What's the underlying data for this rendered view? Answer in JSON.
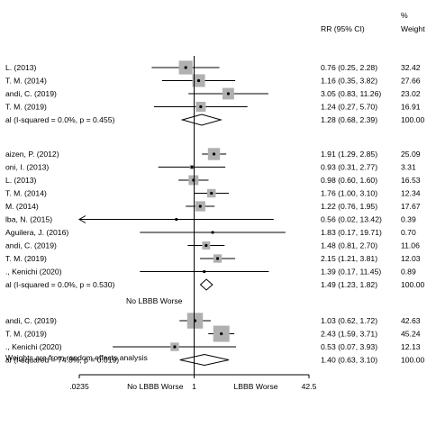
{
  "chart_data": {
    "type": "forest",
    "x_scale": "log",
    "xlim": [
      0.0235,
      42.5
    ],
    "x_ticks": [
      ".0235",
      "1",
      "42.5"
    ],
    "axis_labels": {
      "left": "No LBBB Worse",
      "right": "LBBB Worse"
    },
    "headers": {
      "estimate": "RR (95% CI)",
      "weight_top": "%",
      "weight": "Weight"
    },
    "null_line_label": "No LBBB Worse",
    "footnote": "Weights are from random effects analysis",
    "colors": {
      "line": "#000000",
      "box": "#b0b0b0",
      "summary_fill": "#ffffff"
    },
    "groups": [
      {
        "studies": [
          {
            "label": "L. (2013)",
            "rr": 0.76,
            "lo": 0.25,
            "hi": 2.28,
            "est": "0.76 (0.25, 2.28)",
            "weight": "32.42"
          },
          {
            "label": "T. M. (2014)",
            "rr": 1.16,
            "lo": 0.35,
            "hi": 3.82,
            "est": "1.16 (0.35, 3.82)",
            "weight": "27.66"
          },
          {
            "label": "andi, C. (2019)",
            "rr": 3.05,
            "lo": 0.83,
            "hi": 11.26,
            "est": "3.05 (0.83, 11.26)",
            "weight": "23.02"
          },
          {
            "label": "T. M. (2019)",
            "rr": 1.24,
            "lo": 0.27,
            "hi": 5.7,
            "est": "1.24 (0.27, 5.70)",
            "weight": "16.91"
          }
        ],
        "overall": {
          "label": "al  (I-squared = 0.0%, p = 0.455)",
          "rr": 1.28,
          "lo": 0.68,
          "hi": 2.39,
          "est": "1.28 (0.68, 2.39)",
          "weight": "100.00"
        }
      },
      {
        "studies": [
          {
            "label": "aizen, P. (2012)",
            "rr": 1.91,
            "lo": 1.29,
            "hi": 2.85,
            "est": "1.91 (1.29, 2.85)",
            "weight": "25.09"
          },
          {
            "label": "oni, I. (2013)",
            "rr": 0.93,
            "lo": 0.31,
            "hi": 2.77,
            "est": "0.93 (0.31, 2.77)",
            "weight": "3.31"
          },
          {
            "label": "L. (2013)",
            "rr": 0.98,
            "lo": 0.6,
            "hi": 1.6,
            "est": "0.98 (0.60, 1.60)",
            "weight": "16.53"
          },
          {
            "label": "T. M. (2014)",
            "rr": 1.76,
            "lo": 1.0,
            "hi": 3.1,
            "est": "1.76 (1.00, 3.10)",
            "weight": "12.34"
          },
          {
            "label": "M. (2014)",
            "rr": 1.22,
            "lo": 0.76,
            "hi": 1.95,
            "est": "1.22 (0.76, 1.95)",
            "weight": "17.67"
          },
          {
            "label": "lba, N. (2015)",
            "rr": 0.56,
            "lo": 0.02,
            "hi": 13.42,
            "est": "0.56 (0.02, 13.42)",
            "weight": "0.39",
            "arrow_left": true
          },
          {
            "label": "Aguilera, J. (2016)",
            "rr": 1.83,
            "lo": 0.17,
            "hi": 19.71,
            "est": "1.83 (0.17, 19.71)",
            "weight": "0.70"
          },
          {
            "label": "andi, C. (2019)",
            "rr": 1.48,
            "lo": 0.81,
            "hi": 2.7,
            "est": "1.48 (0.81, 2.70)",
            "weight": "11.06"
          },
          {
            "label": "T. M. (2019)",
            "rr": 2.15,
            "lo": 1.21,
            "hi": 3.81,
            "est": "2.15 (1.21, 3.81)",
            "weight": "12.03"
          },
          {
            "label": "., Kenichi (2020)",
            "rr": 1.39,
            "lo": 0.17,
            "hi": 11.45,
            "est": "1.39 (0.17, 11.45)",
            "weight": "0.89"
          }
        ],
        "overall": {
          "label": "al  (I-squared = 0.0%, p = 0.530)",
          "rr": 1.49,
          "lo": 1.23,
          "hi": 1.82,
          "est": "1.49 (1.23, 1.82)",
          "weight": "100.00"
        }
      },
      {
        "studies": [
          {
            "label": "andi, C. (2019)",
            "rr": 1.03,
            "lo": 0.62,
            "hi": 1.72,
            "est": "1.03 (0.62, 1.72)",
            "weight": "42.63"
          },
          {
            "label": "T. M. (2019)",
            "rr": 2.43,
            "lo": 1.59,
            "hi": 3.71,
            "est": "2.43 (1.59, 3.71)",
            "weight": "45.24"
          },
          {
            "label": "., Kenichi (2020)",
            "rr": 0.53,
            "lo": 0.07,
            "hi": 3.93,
            "est": "0.53 (0.07, 3.93)",
            "weight": "12.13"
          }
        ],
        "overall": {
          "label": "al  (I-squared = 74.8%, p = 0.019)",
          "rr": 1.4,
          "lo": 0.63,
          "hi": 3.1,
          "est": "1.40 (0.63, 3.10)",
          "weight": "100.00"
        }
      }
    ]
  }
}
